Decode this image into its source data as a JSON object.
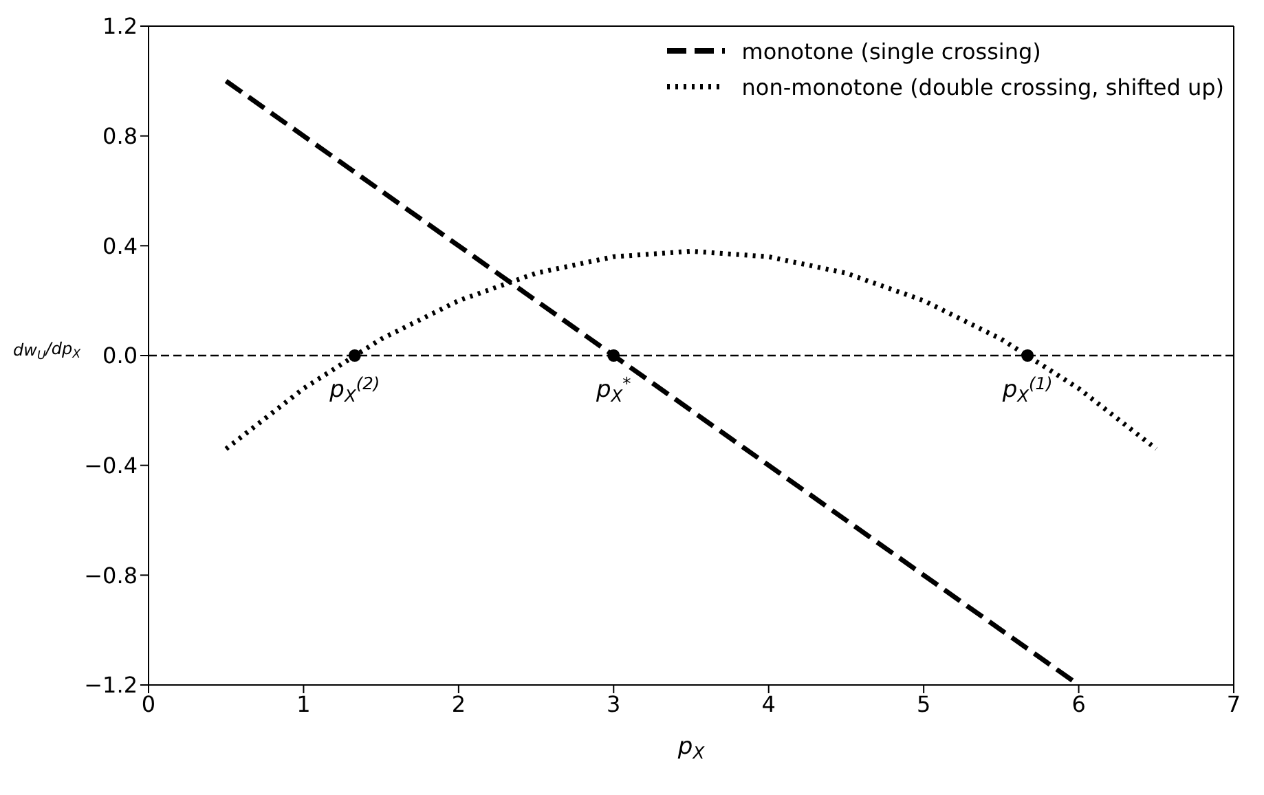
{
  "chart_data": {
    "type": "line",
    "xlabel": "p$_{X}$",
    "ylabel": "dw$_{U}$/dp$_{X}$",
    "xlim": [
      0,
      7
    ],
    "ylim": [
      -1.2,
      1.2
    ],
    "xticks": [
      0,
      1,
      2,
      3,
      4,
      5,
      6,
      7
    ],
    "yticks": [
      {
        "value": -1.2,
        "label": "−1.2"
      },
      {
        "value": -0.8,
        "label": "−0.8"
      },
      {
        "value": -0.4,
        "label": "−0.4"
      },
      {
        "value": 0,
        "label": "0.0"
      },
      {
        "value": 0.4,
        "label": "0.4"
      },
      {
        "value": 0.8,
        "label": "0.8"
      },
      {
        "value": 1.2,
        "label": "1.2"
      }
    ],
    "grid": false,
    "legend": "top right",
    "marker": "none",
    "series": [
      {
        "name": "monotone (single crossing)",
        "color": "#000000",
        "line_style": "dashed",
        "x": [
          0.5,
          6
        ],
        "values": [
          1.0,
          -1.2
        ]
      },
      {
        "name": "non-monotone (double crossing, shifted up)",
        "color": "#000000",
        "line_style": "dotted",
        "x": [
          0.5,
          1,
          1.5,
          2,
          2.5,
          3,
          3.5,
          4,
          4.5,
          5,
          5.5,
          6,
          6.5
        ],
        "values": [
          -0.34,
          -0.12,
          0.06,
          0.2,
          0.3,
          0.36,
          0.38,
          0.36,
          0.3,
          0.2,
          0.06,
          -0.12,
          -0.34
        ]
      },
      {
        "type": "scatter",
        "color": "#000000",
        "marker": "circle",
        "x": [
          1.33,
          3,
          5.67
        ],
        "values": [
          0,
          0,
          0
        ]
      }
    ],
    "ref_lines": [
      {
        "axis": "y",
        "value": 0,
        "color": "#000000",
        "line_style": "dashed"
      }
    ],
    "annotations": [
      {
        "text": "p$_{X}$$^{(2)}$",
        "x": 1.33,
        "y": 0
      },
      {
        "text": "p$_{X}$$^{*}$",
        "x": 3,
        "y": 0
      },
      {
        "text": "p$_{X}$$^{(1)}$",
        "x": 5.67,
        "y": 0
      }
    ]
  }
}
